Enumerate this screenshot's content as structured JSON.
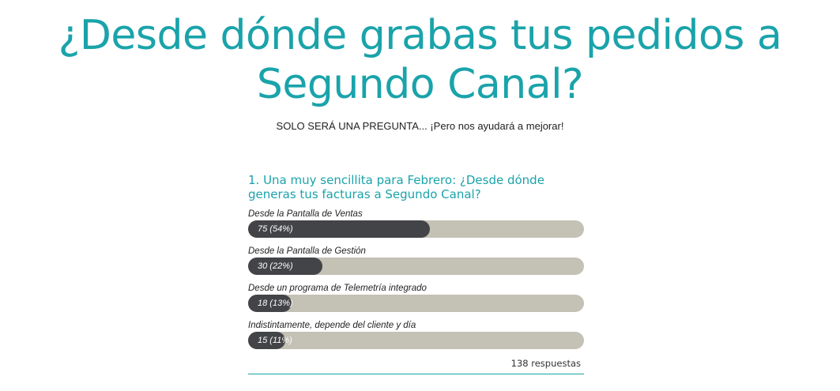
{
  "header": {
    "title_line1": "¿Desde dónde grabas tus pedidos a",
    "title_line2": "Segundo Canal?",
    "subtitle": "SOLO SERÁ UNA PREGUNTA... ¡Pero nos ayudará a mejorar!"
  },
  "poll": {
    "question": "1. Una muy sencillita para Febrero: ¿Desde dónde generas tus facturas a Segundo Canal?",
    "options": [
      {
        "label": "Desde la Pantalla de Ventas",
        "result": "75 (54%)",
        "fraction": 0.54
      },
      {
        "label": "Desde la Pantalla de Gestión",
        "result": "30 (22%)",
        "fraction": 0.22
      },
      {
        "label": "Desde un programa de Telemetría integrado",
        "result": "18 (13%)",
        "fraction": 0.13
      },
      {
        "label": "Indistintamente, depende del cliente y día",
        "result": "15 (11%)",
        "fraction": 0.11
      }
    ],
    "total": "138 respuestas"
  },
  "colors": {
    "accent": "#1aa3aa",
    "bar_track": "#c4c1b5",
    "bar_fill": "#434447"
  }
}
